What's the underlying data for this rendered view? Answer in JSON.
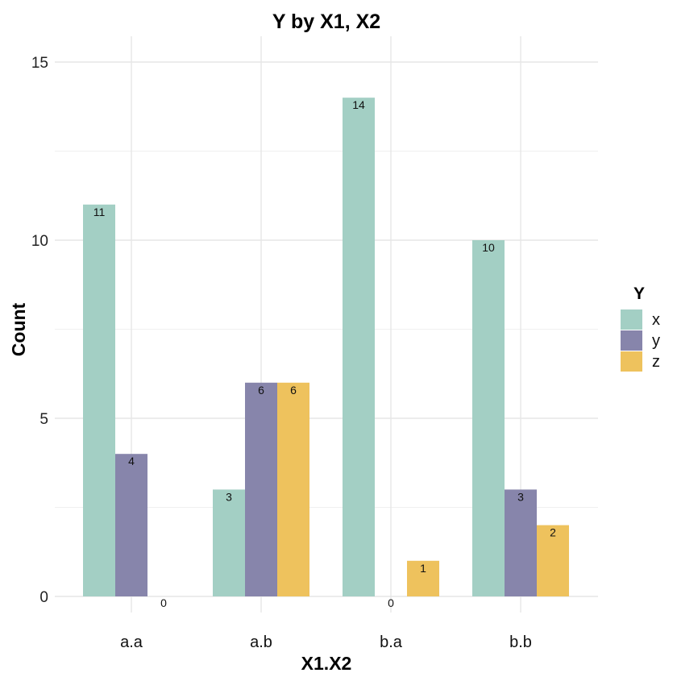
{
  "chart_data": {
    "type": "bar",
    "title": "Y by X1, X2",
    "xlabel": "X1.X2",
    "ylabel": "Count",
    "categories": [
      "a.a",
      "a.b",
      "b.a",
      "b.b"
    ],
    "series": [
      {
        "name": "x",
        "values": [
          11,
          3,
          14,
          10
        ],
        "color": "#a3cfc4"
      },
      {
        "name": "y",
        "values": [
          4,
          6,
          0,
          3
        ],
        "color": "#8785ab"
      },
      {
        "name": "z",
        "values": [
          0,
          6,
          1,
          2
        ],
        "color": "#eec25d"
      }
    ],
    "ylim": [
      0,
      15
    ],
    "yticks": [
      0,
      5,
      10,
      15
    ],
    "grid": true,
    "legend": {
      "title": "Y",
      "position": "right"
    }
  }
}
